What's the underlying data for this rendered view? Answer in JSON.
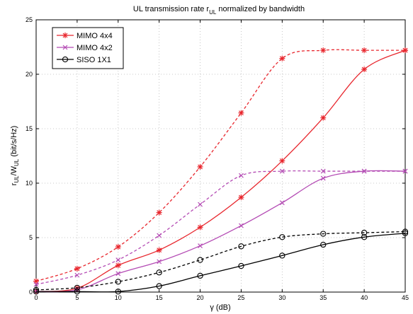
{
  "chart_data": {
    "type": "line",
    "title_main": "UL transmission rate r",
    "title_sub": "UL",
    "title_rest": " normalized by bandwidth",
    "xlabel": "γ (dB)",
    "ylabel": {
      "r": "r",
      "sub1": "UL",
      "slash": "/W",
      "sub2": "UL",
      "unit": " (bit/s/Hz)"
    },
    "xlim": [
      0,
      45
    ],
    "ylim": [
      0,
      25
    ],
    "xticks": [
      0,
      5,
      10,
      15,
      20,
      25,
      30,
      35,
      40,
      45
    ],
    "yticks": [
      0,
      5,
      10,
      15,
      20,
      25
    ],
    "grid": true,
    "legend_position": "top-left",
    "x": [
      0,
      5,
      10,
      15,
      20,
      25,
      30,
      35,
      40,
      45
    ],
    "series": [
      {
        "name": "MIMO 4x4",
        "color": "#e8262d",
        "marker": "asterisk",
        "solid": [
          0.05,
          0.35,
          2.45,
          3.85,
          5.95,
          8.7,
          12.05,
          16.0,
          20.45,
          22.2
        ],
        "dashed": [
          1.0,
          2.15,
          4.15,
          7.3,
          11.5,
          16.45,
          21.45,
          22.2,
          22.2,
          22.2
        ]
      },
      {
        "name": "MIMO 4x2",
        "color": "#b44bb4",
        "marker": "x",
        "solid": [
          0.05,
          0.2,
          1.7,
          2.8,
          4.25,
          6.1,
          8.2,
          10.45,
          11.1,
          11.1
        ],
        "dashed": [
          0.7,
          1.55,
          2.95,
          5.2,
          8.05,
          10.7,
          11.1,
          11.1,
          11.1,
          11.1
        ]
      },
      {
        "name": "SISO 1X1",
        "color": "#000000",
        "marker": "circle",
        "solid": [
          0.05,
          0.05,
          0.05,
          0.55,
          1.5,
          2.4,
          3.35,
          4.35,
          5.05,
          5.4
        ],
        "dashed": [
          0.2,
          0.4,
          0.95,
          1.8,
          2.95,
          4.2,
          5.05,
          5.35,
          5.45,
          5.55
        ]
      }
    ]
  }
}
